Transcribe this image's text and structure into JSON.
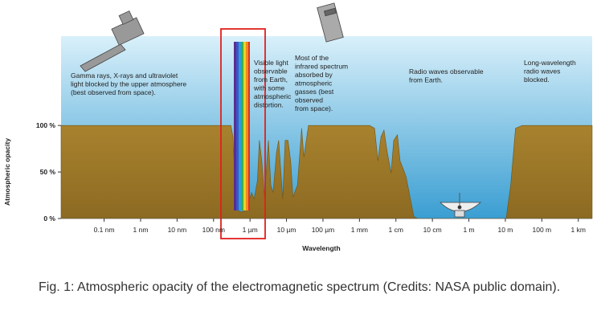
{
  "chart_data": {
    "type": "area",
    "ylabel": "Atmospheric opacity",
    "xlabel": "Wavelength",
    "log_x": true,
    "xlim": [
      6.6e-12,
      2400
    ],
    "ylim": [
      0,
      196
    ],
    "yticks": [
      {
        "value": 0,
        "label": "0 %"
      },
      {
        "value": 50,
        "label": "50 %"
      },
      {
        "value": 100,
        "label": "100 %"
      }
    ],
    "xticks": [
      {
        "value": 1e-10,
        "label": "0.1 nm"
      },
      {
        "value": 1e-09,
        "label": "1 nm"
      },
      {
        "value": 1e-08,
        "label": "10 nm"
      },
      {
        "value": 1e-07,
        "label": "100 nm"
      },
      {
        "value": 1e-06,
        "label": "1 µm"
      },
      {
        "value": 1e-05,
        "label": "10 µm"
      },
      {
        "value": 0.0001,
        "label": "100 µm"
      },
      {
        "value": 0.001,
        "label": "1 mm"
      },
      {
        "value": 0.01,
        "label": "1 cm"
      },
      {
        "value": 0.1,
        "label": "10 cm"
      },
      {
        "value": 1,
        "label": "1 m"
      },
      {
        "value": 10,
        "label": "10 m"
      },
      {
        "value": 100,
        "label": "100 m"
      },
      {
        "value": 1000,
        "label": "1 km"
      }
    ],
    "color": "#a27c2c",
    "x": [
      6.6e-12,
      3e-07,
      3.4e-07,
      4e-07,
      4.6e-07,
      5.7e-07,
      7.7e-07,
      9.4e-07,
      1.1e-06,
      1.3e-06,
      1.6e-06,
      1.8e-06,
      2.1e-06,
      2.5e-06,
      2.9e-06,
      3.2e-06,
      3.7e-06,
      4.3e-06,
      5.3e-06,
      6.1e-06,
      7.9e-06,
      9.2e-06,
      1.1e-05,
      1.3e-05,
      1.5e-05,
      2e-05,
      2.6e-05,
      3e-05,
      4e-05,
      0.0019,
      0.0026,
      0.0032,
      0.0039,
      0.0047,
      0.0058,
      0.0074,
      0.0087,
      0.011,
      0.013,
      0.016,
      0.019,
      0.031,
      0.04,
      10.5,
      14,
      19,
      29,
      2400
    ],
    "values": [
      100,
      100,
      88,
      28,
      9,
      7,
      9,
      19,
      28,
      21,
      41,
      84,
      62,
      23,
      62,
      84,
      36,
      28,
      71,
      84,
      21,
      84,
      84,
      62,
      23,
      36,
      97,
      66,
      100,
      100,
      97,
      62,
      88,
      95,
      71,
      49,
      84,
      90,
      62,
      53,
      45,
      2,
      0,
      0,
      36,
      97,
      100,
      100
    ],
    "annotations": [
      [
        "Gamma rays, X-rays and ultraviolet",
        "light blocked by the upper atmosphere",
        "(best observed from space)."
      ],
      [
        "Visible light",
        "observable",
        "from Earth,",
        "with some",
        "atmospheric",
        "distortion."
      ],
      [
        "Most of the",
        "infrared spectrum",
        "absorbed by",
        "atmospheric",
        "gasses (best",
        "observed",
        "from space)."
      ],
      [
        "Radio waves observable",
        "from Earth."
      ],
      [
        "Long-wavelength",
        "radio waves",
        "blocked."
      ]
    ],
    "caption": "Fig. 1: Atmospheric opacity of the electromagnetic spectrum (Credits: NASA public domain)."
  }
}
